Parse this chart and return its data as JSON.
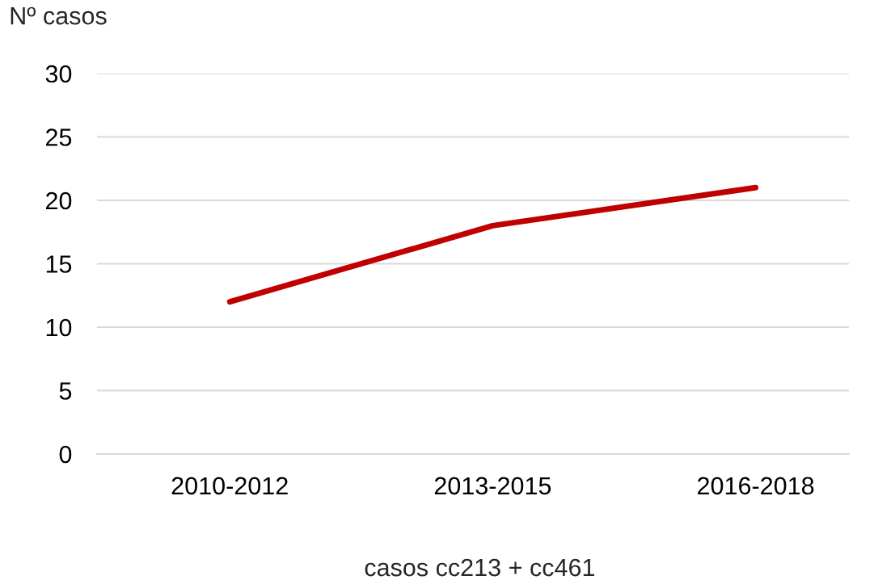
{
  "chart_data": {
    "type": "line",
    "xlabel": "casos cc213 + cc461",
    "ylabel": "Nº casos",
    "categories": [
      "2010-2012",
      "2013-2015",
      "2016-2018"
    ],
    "series": [
      {
        "color": "#c00000",
        "values": [
          12,
          18,
          21
        ]
      }
    ],
    "ylim": [
      0,
      30
    ],
    "yticks": [
      0,
      5,
      10,
      15,
      20,
      25,
      30
    ],
    "grid": "y",
    "line_style": "solid"
  }
}
